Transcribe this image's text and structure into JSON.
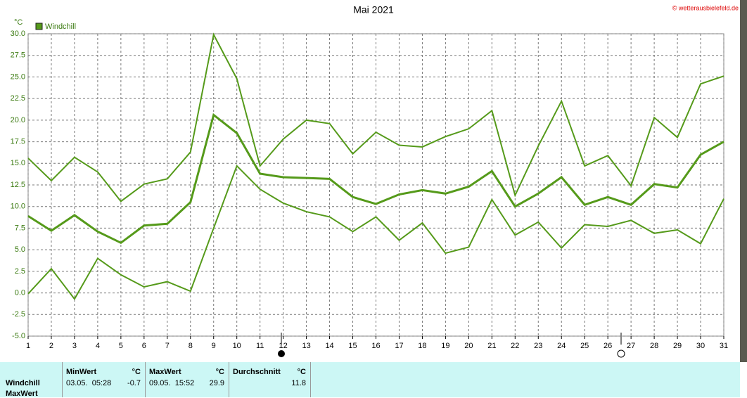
{
  "chart_data": {
    "type": "line",
    "title": "Mai 2021",
    "copyright": "© wetterausbielefeld.de",
    "y_unit": "°C",
    "x": [
      1,
      2,
      3,
      4,
      5,
      6,
      7,
      8,
      9,
      10,
      11,
      12,
      13,
      14,
      15,
      16,
      17,
      18,
      19,
      20,
      21,
      22,
      23,
      24,
      25,
      26,
      27,
      28,
      29,
      30,
      31
    ],
    "xlim": [
      1,
      31
    ],
    "xticks": [
      1,
      2,
      3,
      4,
      5,
      6,
      7,
      8,
      9,
      10,
      11,
      12,
      13,
      14,
      15,
      16,
      17,
      18,
      19,
      20,
      21,
      22,
      23,
      24,
      25,
      26,
      27,
      28,
      29,
      30,
      31
    ],
    "ylim": [
      -5,
      30
    ],
    "yticks": [
      {
        "value": -5,
        "label": "-5.0"
      },
      {
        "value": -2.5,
        "label": "-2.5"
      },
      {
        "value": 0,
        "label": "0.0"
      },
      {
        "value": 2.5,
        "label": "2.5"
      },
      {
        "value": 5,
        "label": "5.0"
      },
      {
        "value": 7.5,
        "label": "7.5"
      },
      {
        "value": 10,
        "label": "10.0"
      },
      {
        "value": 12.5,
        "label": "12.5"
      },
      {
        "value": 15,
        "label": "15.0"
      },
      {
        "value": 17.5,
        "label": "17.5"
      },
      {
        "value": 20,
        "label": "20.0"
      },
      {
        "value": 22.5,
        "label": "22.5"
      },
      {
        "value": 25,
        "label": "25.0"
      },
      {
        "value": 27.5,
        "label": "27.5"
      },
      {
        "value": 30,
        "label": "30.0"
      }
    ],
    "grid": true,
    "series": [
      {
        "name": "Windchill",
        "color": "#559a1a",
        "values": [
          8.9,
          7.2,
          9.0,
          7.1,
          5.8,
          7.8,
          8.0,
          10.5,
          20.6,
          18.5,
          13.8,
          13.4,
          13.3,
          13.2,
          11.1,
          10.3,
          11.4,
          11.9,
          11.5,
          12.3,
          14.1,
          10.0,
          11.5,
          13.4,
          10.2,
          11.1,
          10.2,
          12.6,
          12.2,
          16.0,
          17.5
        ]
      },
      {
        "color": "#559a1a",
        "values": [
          15.6,
          13.0,
          15.7,
          14.0,
          10.6,
          12.6,
          13.2,
          16.3,
          29.9,
          24.8,
          14.7,
          17.8,
          20.0,
          19.6,
          16.1,
          18.6,
          17.1,
          16.9,
          18.1,
          19.0,
          21.1,
          11.3,
          17.0,
          22.2,
          14.7,
          15.9,
          12.4,
          20.3,
          18.0,
          24.2,
          25.1
        ]
      },
      {
        "color": "#559a1a",
        "values": [
          -0.1,
          2.8,
          -0.7,
          4.0,
          2.1,
          0.7,
          1.3,
          0.2,
          7.5,
          14.7,
          12.0,
          10.4,
          9.4,
          8.8,
          7.1,
          8.8,
          6.1,
          8.1,
          4.6,
          5.3,
          10.8,
          6.7,
          8.2,
          5.2,
          7.9,
          7.7,
          8.4,
          6.9,
          7.3,
          5.7,
          10.9
        ]
      }
    ]
  },
  "table": {
    "headers": [
      [
        "MinWert",
        "°C"
      ],
      [
        "MaxWert",
        "°C"
      ],
      [
        "Durchschnitt",
        "°C"
      ]
    ],
    "rows": [
      {
        "label": "Windchill",
        "cells": [
          [
            "03.05.  05:28",
            "-0.7"
          ],
          [
            "09.05.  15:52",
            "29.9"
          ],
          [
            "11.8"
          ]
        ]
      },
      {
        "label": "MaxWert"
      }
    ]
  }
}
